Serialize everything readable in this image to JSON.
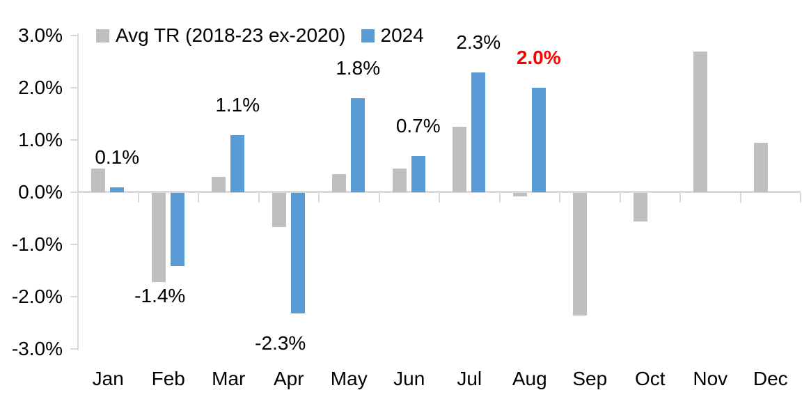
{
  "chart_data": {
    "type": "bar",
    "title": "",
    "categories": [
      "Jan",
      "Feb",
      "Mar",
      "Apr",
      "May",
      "Jun",
      "Jul",
      "Aug",
      "Sep",
      "Oct",
      "Nov",
      "Dec"
    ],
    "series": [
      {
        "name": "Avg TR (2018-23 ex-2020)",
        "color": "#bfbfbf",
        "values": [
          0.45,
          -1.7,
          0.3,
          -0.65,
          0.35,
          0.45,
          1.25,
          -0.07,
          -2.35,
          -0.55,
          2.7,
          0.95
        ]
      },
      {
        "name": "2024",
        "color": "#5b9bd5",
        "values": [
          0.1,
          -1.4,
          1.1,
          -2.3,
          1.8,
          0.7,
          2.3,
          2.0,
          null,
          null,
          null,
          null
        ]
      }
    ],
    "data_labels": [
      {
        "category": "Jan",
        "text": "0.1%",
        "color": "#000000",
        "bold": false
      },
      {
        "category": "Feb",
        "text": "-1.4%",
        "color": "#000000",
        "bold": false
      },
      {
        "category": "Mar",
        "text": "1.1%",
        "color": "#000000",
        "bold": false
      },
      {
        "category": "Apr",
        "text": "-2.3%",
        "color": "#000000",
        "bold": false
      },
      {
        "category": "May",
        "text": "1.8%",
        "color": "#000000",
        "bold": false
      },
      {
        "category": "Jun",
        "text": "0.7%",
        "color": "#000000",
        "bold": false
      },
      {
        "category": "Jul",
        "text": "2.3%",
        "color": "#000000",
        "bold": false
      },
      {
        "category": "Aug",
        "text": "2.0%",
        "color": "#ff0000",
        "bold": true
      }
    ],
    "y_ticks": [
      "3.0%",
      "2.0%",
      "1.0%",
      "0.0%",
      "-1.0%",
      "-2.0%",
      "-3.0%"
    ],
    "ylim": [
      -3,
      3
    ],
    "xlabel": "",
    "ylabel": "",
    "grid": false,
    "legend_position": "top",
    "axis_color": "#d9d9d9",
    "text_color": "#000000",
    "highlight_color": "#ff0000",
    "background_color": "#ffffff"
  }
}
